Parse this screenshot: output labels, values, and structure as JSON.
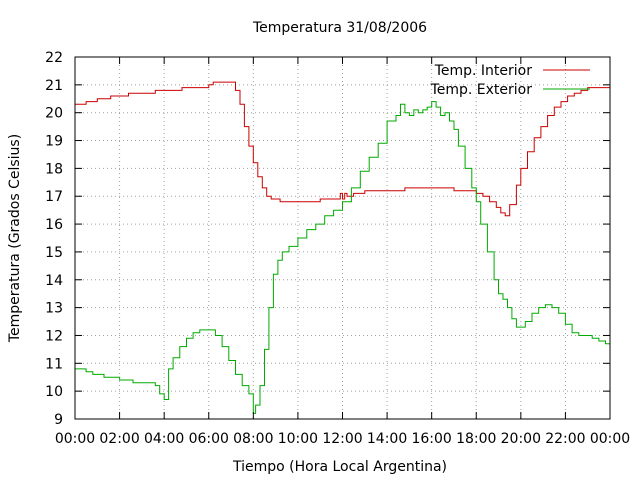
{
  "chart_data": {
    "type": "line",
    "title": "Temperatura 31/08/2006",
    "xlabel": "Tiempo (Hora Local Argentina)",
    "ylabel": "Temperatura (Grados Celsius)",
    "xlim": [
      0,
      24
    ],
    "ylim": [
      9,
      22
    ],
    "grid": true,
    "legend_position": "top-right",
    "x_tick_labels": [
      "00:00",
      "02:00",
      "04:00",
      "06:00",
      "08:00",
      "10:00",
      "12:00",
      "14:00",
      "16:00",
      "18:00",
      "20:00",
      "22:00",
      "00:00"
    ],
    "y_tick_labels": [
      "9",
      "10",
      "11",
      "12",
      "13",
      "14",
      "15",
      "16",
      "17",
      "18",
      "19",
      "20",
      "21",
      "22"
    ],
    "series": [
      {
        "name": "Temp. Interior",
        "color": "#cc0000",
        "x": [
          0,
          0.2,
          0.5,
          0.8,
          1.0,
          1.3,
          1.6,
          2.0,
          2.4,
          2.8,
          3.2,
          3.6,
          4.0,
          4.4,
          4.8,
          5.2,
          5.6,
          6.0,
          6.2,
          6.6,
          7.0,
          7.2,
          7.4,
          7.6,
          7.8,
          8.0,
          8.2,
          8.4,
          8.6,
          8.8,
          9.0,
          9.2,
          9.5,
          10.0,
          10.5,
          11.0,
          11.5,
          11.8,
          11.9,
          12.0,
          12.1,
          12.2,
          12.5,
          13.0,
          13.5,
          14.0,
          14.5,
          14.8,
          15.0,
          15.5,
          16.0,
          16.5,
          17.0,
          17.5,
          18.0,
          18.3,
          18.6,
          18.9,
          19.1,
          19.3,
          19.5,
          19.8,
          20.0,
          20.3,
          20.6,
          20.9,
          21.2,
          21.5,
          21.8,
          22.1,
          22.4,
          22.7,
          23.0,
          23.3,
          23.6,
          23.9,
          24.0
        ],
        "values": [
          20.3,
          20.3,
          20.4,
          20.4,
          20.5,
          20.5,
          20.6,
          20.6,
          20.7,
          20.7,
          20.7,
          20.8,
          20.8,
          20.8,
          20.9,
          20.9,
          20.9,
          21.0,
          21.1,
          21.1,
          21.1,
          20.8,
          20.3,
          19.5,
          18.8,
          18.2,
          17.7,
          17.3,
          17.0,
          16.9,
          16.9,
          16.8,
          16.8,
          16.8,
          16.8,
          16.9,
          16.9,
          16.9,
          17.1,
          16.9,
          17.1,
          17.0,
          17.1,
          17.2,
          17.2,
          17.2,
          17.2,
          17.3,
          17.3,
          17.3,
          17.3,
          17.3,
          17.2,
          17.2,
          17.1,
          17.0,
          16.8,
          16.6,
          16.4,
          16.3,
          16.7,
          17.4,
          18.0,
          18.6,
          19.1,
          19.5,
          19.9,
          20.2,
          20.4,
          20.6,
          20.7,
          20.8,
          20.9,
          20.9,
          20.9,
          20.9,
          20.9
        ]
      },
      {
        "name": "Temp. Exterior",
        "color": "#00aa00",
        "x": [
          0,
          0.3,
          0.5,
          0.8,
          1.0,
          1.3,
          1.6,
          2.0,
          2.3,
          2.6,
          3.0,
          3.3,
          3.6,
          3.8,
          4.0,
          4.2,
          4.4,
          4.7,
          5.0,
          5.3,
          5.6,
          6.0,
          6.3,
          6.6,
          6.9,
          7.2,
          7.5,
          7.8,
          8.0,
          8.1,
          8.3,
          8.5,
          8.7,
          8.9,
          9.1,
          9.3,
          9.6,
          10.0,
          10.4,
          10.8,
          11.2,
          11.6,
          12.0,
          12.4,
          12.8,
          13.2,
          13.6,
          14.0,
          14.2,
          14.4,
          14.6,
          14.8,
          15.0,
          15.2,
          15.4,
          15.6,
          15.8,
          16.0,
          16.2,
          16.4,
          16.6,
          16.8,
          17.0,
          17.2,
          17.5,
          17.8,
          18.0,
          18.2,
          18.5,
          18.8,
          19.0,
          19.2,
          19.4,
          19.6,
          19.8,
          20.0,
          20.2,
          20.5,
          20.8,
          21.1,
          21.4,
          21.7,
          22.0,
          22.3,
          22.6,
          22.9,
          23.2,
          23.5,
          23.8,
          24.0
        ],
        "values": [
          10.8,
          10.8,
          10.7,
          10.6,
          10.6,
          10.5,
          10.5,
          10.4,
          10.4,
          10.3,
          10.3,
          10.3,
          10.2,
          9.9,
          9.7,
          10.8,
          11.2,
          11.6,
          11.9,
          12.1,
          12.2,
          12.2,
          12.0,
          11.6,
          11.1,
          10.6,
          10.2,
          9.9,
          9.2,
          9.5,
          10.2,
          11.5,
          13.0,
          14.2,
          14.7,
          15.0,
          15.2,
          15.5,
          15.8,
          16.0,
          16.3,
          16.5,
          16.8,
          17.3,
          17.9,
          18.4,
          18.9,
          19.7,
          19.7,
          19.9,
          20.3,
          20.0,
          19.9,
          20.1,
          20.0,
          20.1,
          20.2,
          20.4,
          20.2,
          19.9,
          20.0,
          19.7,
          19.4,
          18.8,
          18.0,
          17.3,
          16.8,
          16.0,
          15.0,
          14.0,
          13.5,
          13.3,
          13.0,
          12.6,
          12.3,
          12.3,
          12.5,
          12.8,
          13.0,
          13.1,
          13.0,
          12.8,
          12.4,
          12.1,
          12.0,
          12.0,
          11.9,
          11.8,
          11.7,
          11.6
        ]
      }
    ]
  }
}
